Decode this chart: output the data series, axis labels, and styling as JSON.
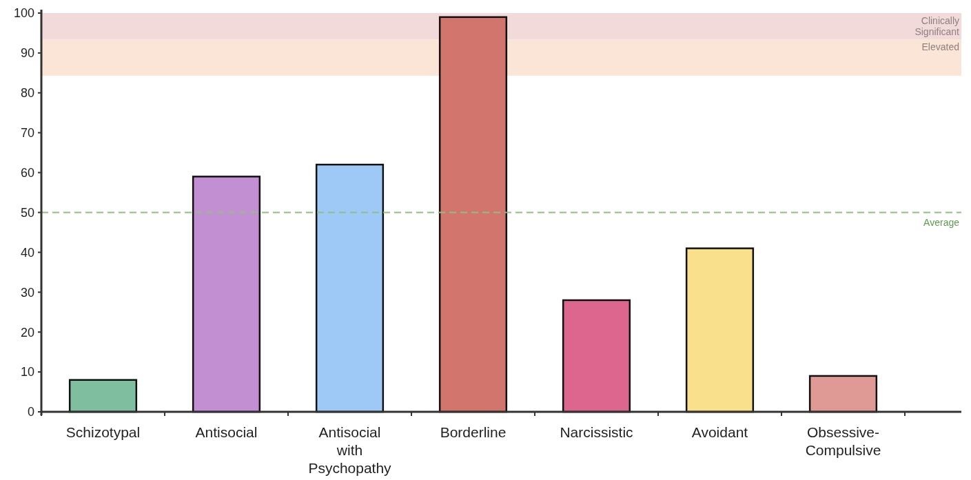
{
  "chart_data": {
    "type": "bar",
    "categories": [
      "Schizotypal",
      "Antisocial",
      "Antisocial with Psychopathy",
      "Borderline",
      "Narcissistic",
      "Avoidant",
      "Obsessive-Compulsive"
    ],
    "values": [
      8,
      59,
      62,
      99,
      28,
      41,
      9
    ],
    "colors": [
      "#7fbfa0",
      "#c38fd3",
      "#9ec8f5",
      "#d1756d",
      "#dc668d",
      "#f9e08c",
      "#e09a96"
    ],
    "ylim": [
      0,
      100
    ],
    "yticks": [
      0,
      10,
      20,
      30,
      40,
      50,
      60,
      70,
      80,
      90,
      100
    ],
    "ref_lines": [
      {
        "axis": "y",
        "value": 50,
        "label": "Average",
        "color": "#8fc080",
        "line_style": "dashed"
      }
    ],
    "bands": [
      {
        "axis": "y",
        "from": 93.4,
        "to": 100,
        "label": "Clinically Significant",
        "color": "#f2dada"
      },
      {
        "axis": "y",
        "from": 84.3,
        "to": 93.4,
        "label": "Elevated",
        "color": "#fae5d6"
      }
    ]
  }
}
